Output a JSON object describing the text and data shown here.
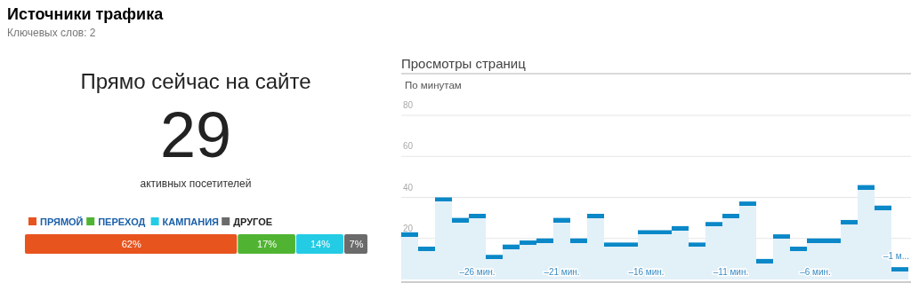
{
  "chart_data": [
    {
      "type": "other",
      "title": "Источники трафика",
      "subtitle": "Ключевых слов: 2",
      "annotations": [
        "Прямо сейчас на сайте",
        "29",
        "активных посетителей"
      ]
    },
    {
      "type": "bar",
      "orientation": "horizontal",
      "stacked": true,
      "categories": [
        null
      ],
      "xlim": [
        0,
        100
      ],
      "legend": "top left",
      "series": [
        {
          "name": "ПРЯМОЙ",
          "color": "#e8541e",
          "values": [
            62
          ],
          "value_labels": [
            "62%"
          ]
        },
        {
          "name": "ПЕРЕХОД",
          "color": "#50b432",
          "values": [
            17
          ],
          "value_labels": [
            "17%"
          ]
        },
        {
          "name": "КАМПАНИЯ",
          "color": "#24cbe5",
          "values": [
            14
          ],
          "value_labels": [
            "14%"
          ]
        },
        {
          "name": "ДРУГОЕ",
          "color": "#6b6b6b",
          "values": [
            7
          ],
          "value_labels": [
            "7%"
          ]
        }
      ]
    },
    {
      "type": "bar",
      "title": "Просмотры страниц",
      "subtitle": "По минутам",
      "color": "#0a88c8",
      "grid": "y",
      "ylim": [
        0,
        80
      ],
      "yticks": [
        20,
        40,
        60,
        80
      ],
      "categories": [
        null,
        null,
        null,
        null,
        "–26 мин.",
        null,
        null,
        null,
        null,
        "–21 мин.",
        null,
        null,
        null,
        null,
        "–16 мин.",
        null,
        null,
        null,
        null,
        "–11 мин.",
        null,
        null,
        null,
        null,
        "–6 мин.",
        null,
        null,
        null,
        null,
        "–1 м..."
      ],
      "values": [
        23,
        16,
        40,
        30,
        32,
        12,
        17,
        19,
        20,
        30,
        20,
        32,
        18,
        18,
        24,
        24,
        26,
        18,
        28,
        32,
        38,
        10,
        22,
        16,
        20,
        20,
        29,
        46,
        36,
        6
      ]
    }
  ]
}
